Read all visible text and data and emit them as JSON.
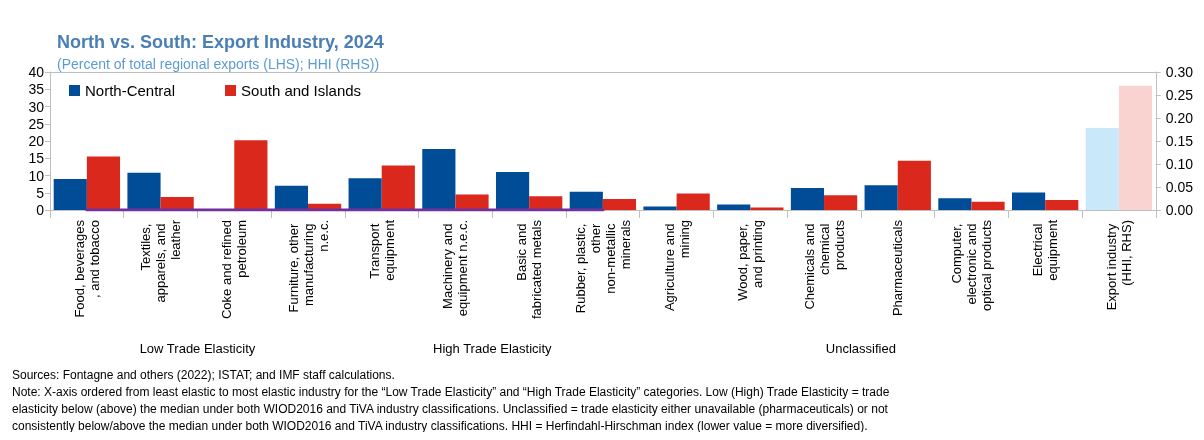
{
  "chart_data": {
    "type": "bar",
    "title": "North vs. South: Export Industry, 2024",
    "subtitle": "(Percent of total regional exports (LHS); HHI (RHS))",
    "categories": [
      "Food, beverages, and tobacco",
      "Textiles, apparels, and leather",
      "Coke and refined petroleum",
      "Furniture, other manufacturing n.e.c.",
      "Transport equipment",
      "Machinery and equipment n.e.c.",
      "Basic and fabricated metals",
      "Rubber, plastic, other non-metallic minerals",
      "Agriculture and mining",
      "Wood, paper, and printing",
      "Chemicals and chemical products",
      "Pharmaceuticals",
      "Computer, electronic and optical products",
      "Electrical equipment",
      "Export industry (HHI, RHS)"
    ],
    "series": [
      {
        "name": "North-Central",
        "color": "#004c97",
        "values": [
          9.0,
          10.8,
          null,
          7.0,
          9.2,
          17.7,
          11.0,
          5.3,
          1.0,
          1.6,
          6.4,
          7.2,
          3.4,
          5.1,
          null
        ]
      },
      {
        "name": "South and Islands",
        "color": "#da291c",
        "values": [
          15.5,
          3.8,
          20.2,
          1.8,
          12.9,
          4.5,
          4.0,
          3.2,
          4.8,
          0.7,
          4.3,
          14.3,
          2.4,
          2.9,
          null
        ]
      },
      {
        "color": "#c9e9fa",
        "axis": "y2",
        "values": [
          null,
          null,
          null,
          null,
          null,
          null,
          null,
          null,
          null,
          null,
          null,
          null,
          null,
          null,
          0.178
        ]
      },
      {
        "color": "#f8d3d0",
        "axis": "y2",
        "values": [
          null,
          null,
          null,
          null,
          null,
          null,
          null,
          null,
          null,
          null,
          null,
          null,
          null,
          null,
          0.27
        ]
      },
      {
        "type": "line",
        "color": "#7030a0",
        "values": [
          0,
          0,
          0,
          0,
          0,
          0,
          0,
          0,
          null,
          null,
          null,
          null,
          null,
          null,
          null
        ]
      }
    ],
    "ylim": [
      0,
      40
    ],
    "yticks": [
      0,
      5,
      10,
      15,
      20,
      25,
      30,
      35,
      40
    ],
    "y2lim": [
      0,
      0.3
    ],
    "y2ticks": [
      {
        "value": 0,
        "label": "0.00"
      },
      {
        "value": 0.05,
        "label": "0.05"
      },
      {
        "value": 0.1,
        "label": "0.10"
      },
      {
        "value": 0.15,
        "label": "0.15"
      },
      {
        "value": 0.2,
        "label": "0.20"
      },
      {
        "value": 0.25,
        "label": "0.25"
      },
      {
        "value": 0.3,
        "label": "0.30"
      }
    ],
    "legend": "top left",
    "annotations": [
      "Low Trade Elasticity",
      "High Trade Elasticity",
      "Unclassified",
      "Sources: Fontagne and others (2022); ISTAT; and IMF staff calculations.",
      "Note: X-axis ordered from least elastic to most elastic industry for the “Low Trade Elasticity” and “High Trade Elasticity” categories. Low (High) Trade Elasticity = trade elasticity below (above) the median under both WIOD2016 and TiVA industry classifications. Unclassified = trade elasticity either unavailable (pharmaceuticals) or not consistently below/above the median under both WIOD2016 and TiVA industry classifications. HHI = Herfindahl-Hirschman index (lower value = more diversified)."
    ]
  }
}
